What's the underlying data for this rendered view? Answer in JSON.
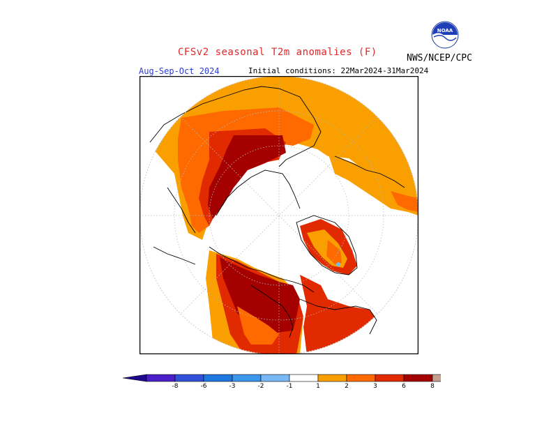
{
  "header": {
    "title": "CFSv2 seasonal T2m anomalies (F)",
    "agency": "NWS/NCEP/CPC",
    "season": "Aug-Sep-Oct 2024",
    "initial_conditions": "Initial conditions: 22Mar2024-31Mar2024",
    "logo_text": "NOAA"
  },
  "legend": {
    "classes": [
      {
        "label": "-8",
        "color": "#4a1ec8"
      },
      {
        "label": "-6",
        "color": "#2f52d8"
      },
      {
        "label": "-3",
        "color": "#1e78e0"
      },
      {
        "label": "-2",
        "color": "#3c96ec"
      },
      {
        "label": "-1",
        "color": "#78b8f4"
      },
      {
        "label": "",
        "color": "#ffffff"
      },
      {
        "label": "1",
        "color": "#f9a000"
      },
      {
        "label": "2",
        "color": "#ff6a00"
      },
      {
        "label": "3",
        "color": "#e12a00"
      },
      {
        "label": "6",
        "color": "#a50000"
      },
      {
        "label": "8",
        "color": "#c4a090"
      }
    ],
    "low_end_color": "#1e0a8c",
    "high_end_color": "#7a4a44"
  },
  "map": {
    "projection": "north-polar-stereographic",
    "colors": {
      "orange": "#f9a000",
      "redorange": "#ff6a00",
      "red": "#e12a00",
      "darkred": "#a50000",
      "lightblue": "#78b8f4"
    }
  }
}
